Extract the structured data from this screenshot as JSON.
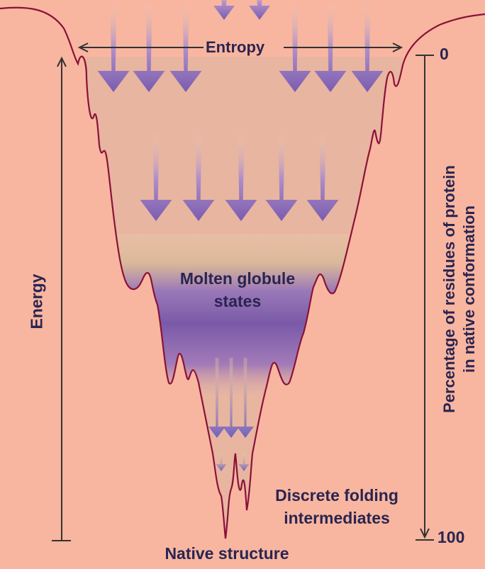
{
  "labels": {
    "entropy": "Entropy",
    "energy": "Energy",
    "molten_line1": "Molten globule",
    "molten_line2": "states",
    "discrete_line1": "Discrete folding",
    "discrete_line2": "intermediates",
    "native": "Native structure",
    "right_axis_line1": "Percentage of residues of protein",
    "right_axis_line2": "in native conformation",
    "tick_top": "0",
    "tick_bottom": "100"
  },
  "colors": {
    "background": "#f8b6a0",
    "funnel_fill": "#e8b5a0",
    "funnel_edge": "#8a1238",
    "arrow": "#8a6fc0",
    "molten": "#7d5ca8",
    "text": "#2a2550",
    "axis": "#333333"
  }
}
